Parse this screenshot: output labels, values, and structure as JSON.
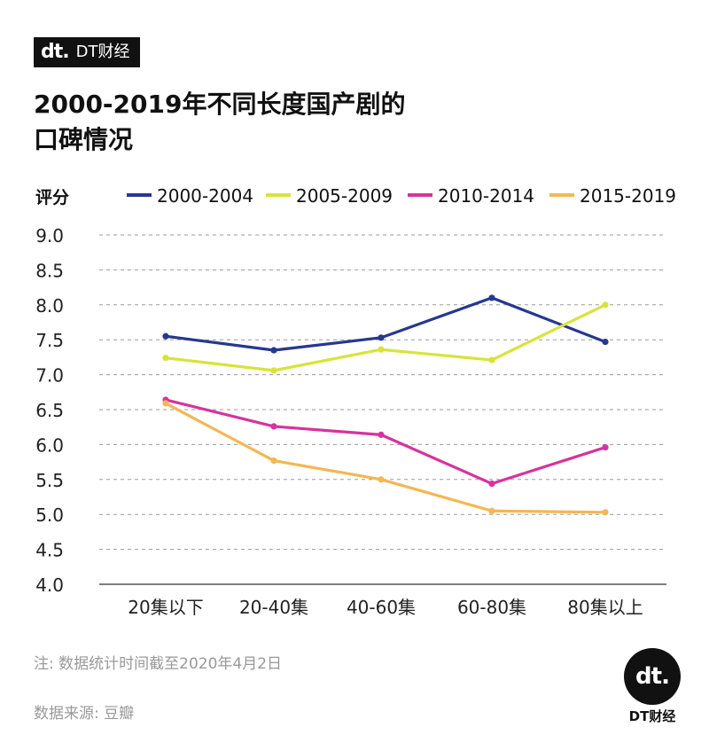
{
  "brand": {
    "logo": "dt.",
    "name": "DT财经"
  },
  "title": {
    "line1": "2000-2019年不同长度国产剧的",
    "line2": "口碑情况"
  },
  "footer": {
    "note": "注: 数据统计时间截至2020年4月2日",
    "source": "数据来源: 豆瓣",
    "corner_logo": "dt.",
    "corner_text": "DT财经"
  },
  "chart_data": {
    "type": "line",
    "title": "2000-2019年不同长度国产剧的口碑情况",
    "ylabel": "评分",
    "xlabel": "",
    "ylim": [
      4.0,
      9.0
    ],
    "yticks": [
      "9.0",
      "8.5",
      "8.0",
      "7.5",
      "7.0",
      "6.5",
      "6.0",
      "5.5",
      "5.0",
      "4.5",
      "4.0"
    ],
    "grid": true,
    "legend_position": "top",
    "categories": [
      "20集以下",
      "20-40集",
      "40-60集",
      "60-80集",
      "80集以上"
    ],
    "series": [
      {
        "name": "2000-2004",
        "color": "#26388f",
        "values": [
          7.55,
          7.35,
          7.53,
          8.1,
          7.47
        ]
      },
      {
        "name": "2005-2009",
        "color": "#d6e43a",
        "values": [
          7.24,
          7.06,
          7.36,
          7.21,
          8.0
        ]
      },
      {
        "name": "2010-2014",
        "color": "#d6339f",
        "values": [
          6.64,
          6.26,
          6.14,
          5.44,
          5.96
        ]
      },
      {
        "name": "2015-2019",
        "color": "#f5b654",
        "values": [
          6.59,
          5.77,
          5.5,
          5.05,
          5.03
        ]
      }
    ]
  }
}
